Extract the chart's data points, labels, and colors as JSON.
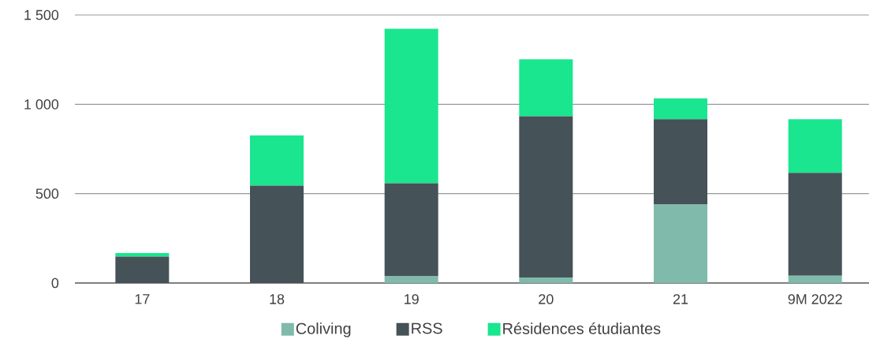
{
  "chart_data": {
    "type": "bar",
    "stacked": true,
    "categories": [
      "17",
      "18",
      "19",
      "20",
      "21",
      "9M 2022"
    ],
    "series": [
      {
        "name": "Coliving",
        "color": "#7fbaaa",
        "values": [
          0,
          0,
          37,
          31,
          439,
          41
        ]
      },
      {
        "name": "RSS",
        "color": "#455257",
        "values": [
          148,
          545,
          521,
          902,
          477,
          575
        ]
      },
      {
        "name": "Résidences étudiantes",
        "color": "#19e68f",
        "values": [
          20,
          281,
          865,
          319,
          117,
          301
        ]
      }
    ],
    "ylim": [
      0,
      1500
    ],
    "yticks": [
      0,
      500,
      {
        "value": 1000,
        "label": "1 000"
      },
      {
        "value": 1500,
        "label": "1 500"
      }
    ],
    "grid": "y",
    "legend": "bottom"
  }
}
